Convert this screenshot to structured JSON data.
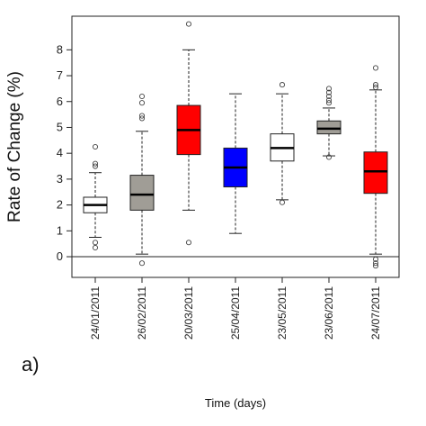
{
  "chart_data": {
    "type": "boxplot",
    "panel_label": "a)",
    "xlabel": "Time (days)",
    "ylabel": "Rate of Change (%)",
    "ylim": [
      -0.8,
      9.3
    ],
    "yticks": [
      0,
      1,
      2,
      3,
      4,
      5,
      6,
      7,
      8
    ],
    "reference_line": 0,
    "grid": false,
    "categories": [
      "24/01/2011",
      "26/02/2011",
      "20/03/2011",
      "25/04/2011",
      "23/05/2011",
      "23/06/2011",
      "24/07/2011"
    ],
    "boxes": [
      {
        "date": "24/01/2011",
        "whisker_low": 0.75,
        "q1": 1.7,
        "median": 2.0,
        "q3": 2.3,
        "whisker_high": 3.25,
        "outliers": [
          0.35,
          0.55,
          3.5,
          3.6,
          4.25
        ],
        "color": "#ffffff"
      },
      {
        "date": "26/02/2011",
        "whisker_low": 0.1,
        "q1": 1.8,
        "median": 2.4,
        "q3": 3.15,
        "whisker_high": 4.85,
        "outliers": [
          -0.25,
          5.35,
          5.45,
          5.95,
          6.2
        ],
        "color": "#a09d96"
      },
      {
        "date": "20/03/2011",
        "whisker_low": 1.8,
        "q1": 3.95,
        "median": 4.9,
        "q3": 5.85,
        "whisker_high": 8.0,
        "outliers": [
          0.55,
          9.0
        ],
        "color": "#ff0000"
      },
      {
        "date": "25/04/2011",
        "whisker_low": 0.9,
        "q1": 2.7,
        "median": 3.45,
        "q3": 4.2,
        "whisker_high": 6.3,
        "outliers": [],
        "color": "#0000ff"
      },
      {
        "date": "23/05/2011",
        "whisker_low": 2.2,
        "q1": 3.7,
        "median": 4.2,
        "q3": 4.75,
        "whisker_high": 6.3,
        "outliers": [
          2.1,
          6.65
        ],
        "color": "#ffffff"
      },
      {
        "date": "23/06/2011",
        "whisker_low": 3.9,
        "q1": 4.75,
        "median": 4.95,
        "q3": 5.25,
        "whisker_high": 5.75,
        "outliers": [
          3.85,
          5.95,
          6.05,
          6.2,
          6.35,
          6.5
        ],
        "color": "#a09d96"
      },
      {
        "date": "24/07/2011",
        "whisker_low": 0.1,
        "q1": 2.45,
        "median": 3.3,
        "q3": 4.05,
        "whisker_high": 6.45,
        "outliers": [
          -0.35,
          -0.25,
          -0.1,
          6.55,
          6.65,
          7.3
        ],
        "color": "#ff0000"
      }
    ]
  }
}
